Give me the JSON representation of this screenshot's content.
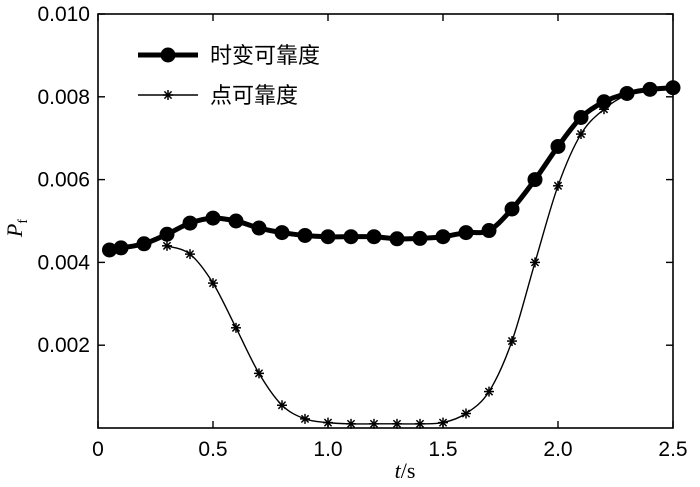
{
  "chart_data": {
    "type": "line",
    "title": "",
    "xlabel_var": "t",
    "xlabel_unit": "/s",
    "ylabel_var": "P",
    "ylabel_sub": "f",
    "xlim": [
      0,
      2.5
    ],
    "ylim": [
      0,
      0.01
    ],
    "xticks": [
      "0",
      "0.5",
      "1.0",
      "1.5",
      "2.0",
      "2.5"
    ],
    "yticks": [
      "0.002",
      "0.004",
      "0.006",
      "0.008",
      "0.010"
    ],
    "xtick_values": [
      0,
      0.5,
      1.0,
      1.5,
      2.0,
      2.5
    ],
    "ytick_values": [
      0.002,
      0.004,
      0.006,
      0.008,
      0.01
    ],
    "legend_position": "top-left",
    "grid": false,
    "series": [
      {
        "name": "时变可靠度",
        "marker": "circle",
        "style": "thick",
        "x": [
          0.05,
          0.1,
          0.2,
          0.3,
          0.4,
          0.5,
          0.6,
          0.7,
          0.8,
          0.9,
          1.0,
          1.1,
          1.2,
          1.3,
          1.4,
          1.5,
          1.6,
          1.7,
          1.8,
          1.9,
          2.0,
          2.1,
          2.2,
          2.3,
          2.4,
          2.5
        ],
        "values": [
          0.0043,
          0.00435,
          0.00445,
          0.00468,
          0.00495,
          0.00507,
          0.005,
          0.00483,
          0.00472,
          0.00465,
          0.00462,
          0.00462,
          0.00462,
          0.00457,
          0.00458,
          0.00462,
          0.00472,
          0.00477,
          0.00529,
          0.006,
          0.0068,
          0.0075,
          0.00788,
          0.00808,
          0.00818,
          0.00822
        ]
      },
      {
        "name": "点可靠度",
        "marker": "star",
        "style": "thin",
        "x": [
          0.3,
          0.4,
          0.5,
          0.6,
          0.7,
          0.8,
          0.9,
          1.0,
          1.1,
          1.2,
          1.3,
          1.4,
          1.5,
          1.6,
          1.7,
          1.8,
          1.9,
          2.0,
          2.1,
          2.2,
          2.3,
          2.4
        ],
        "values": [
          0.0044,
          0.0042,
          0.0035,
          0.00242,
          0.00132,
          0.00055,
          0.00022,
          0.00013,
          0.0001,
          0.0001,
          0.0001,
          0.0001,
          0.00013,
          0.00035,
          0.00088,
          0.0021,
          0.004,
          0.00585,
          0.0071,
          0.0077,
          0.00805,
          0.0082
        ]
      }
    ]
  }
}
